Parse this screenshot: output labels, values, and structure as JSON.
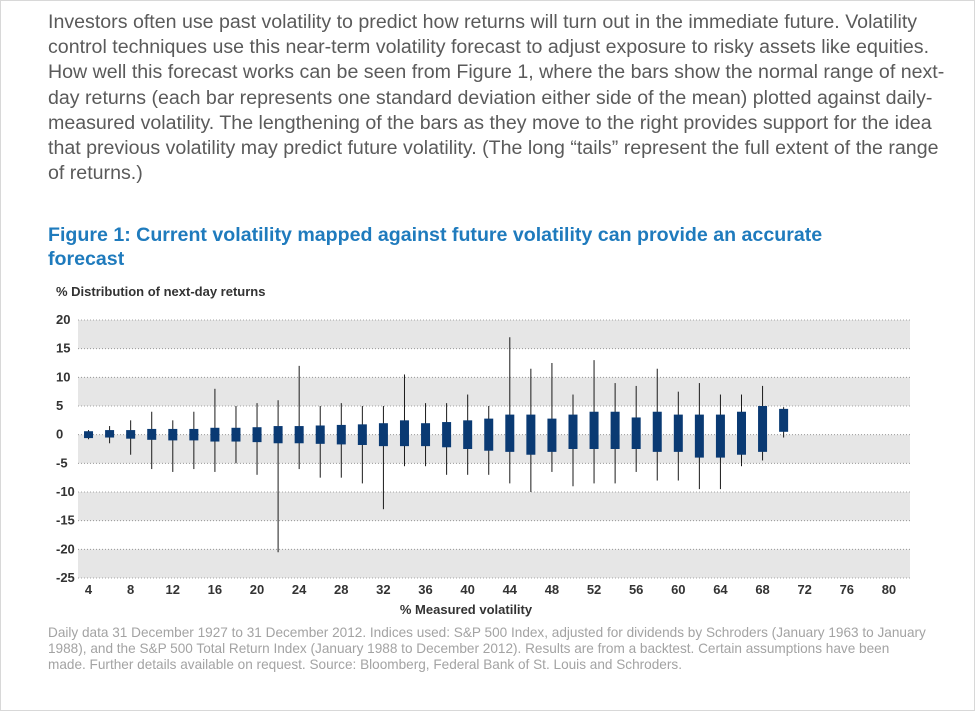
{
  "intro_text": "Investors often use past volatility to predict how returns will turn out in the immediate future. Volatility control techniques use this near-term volatility forecast to adjust exposure to risky assets like equities. How well this forecast works can be seen from Figure 1, where the bars show the normal range of next-day returns (each bar represents one standard deviation either side of the mean) plotted against daily-measured volatility. The lengthening of the bars as they move to the right provides support for the idea that previous volatility may predict future volatility. (The long “tails” represent the full extent of the range of returns.)",
  "footnote": "Daily data 31 December 1927 to 31 December 2012. Indices used: S&P 500 Index, adjusted for dividends by Schroders (January 1963 to January 1988), and the S&P 500 Total Return Index (January 1988 to December 2012). Results are from a backtest. Certain assumptions have been made. Further details available on request. Source: Bloomberg, Federal Bank of St. Louis and Schroders.",
  "colors": {
    "title": "#1f7bbd",
    "box": "#0a3a73",
    "band": "#e6e6e6",
    "text": "#5a5a5a"
  },
  "chart_data": {
    "type": "box",
    "title": "Figure 1: Current volatility mapped against future volatility can provide an accurate forecast",
    "ylabel": "% Distribution of next-day returns",
    "xlabel": "% Measured volatility",
    "ylim": [
      -25,
      20
    ],
    "xlim": [
      3,
      82
    ],
    "x_ticks": [
      4,
      8,
      12,
      16,
      20,
      24,
      28,
      32,
      36,
      40,
      44,
      48,
      52,
      56,
      60,
      64,
      68,
      72,
      76,
      80
    ],
    "y_ticks": [
      20,
      15,
      10,
      5,
      0,
      -5,
      -10,
      -15,
      -20,
      -25
    ],
    "grid": "alternating horizontal bands",
    "series": [
      {
        "x": 4,
        "min": -0.8,
        "q1": -0.6,
        "q3": 0.6,
        "max": 0.8
      },
      {
        "x": 6,
        "min": -1.5,
        "q1": -0.5,
        "q3": 0.8,
        "max": 1.5
      },
      {
        "x": 8,
        "min": -3.5,
        "q1": -0.7,
        "q3": 0.8,
        "max": 2.5
      },
      {
        "x": 10,
        "min": -6.0,
        "q1": -0.9,
        "q3": 1.0,
        "max": 4.0
      },
      {
        "x": 12,
        "min": -6.5,
        "q1": -1.0,
        "q3": 1.0,
        "max": 2.5
      },
      {
        "x": 14,
        "min": -6.0,
        "q1": -1.0,
        "q3": 1.0,
        "max": 4.0
      },
      {
        "x": 16,
        "min": -6.5,
        "q1": -1.2,
        "q3": 1.2,
        "max": 8.0
      },
      {
        "x": 18,
        "min": -5.0,
        "q1": -1.2,
        "q3": 1.2,
        "max": 5.0
      },
      {
        "x": 20,
        "min": -7.0,
        "q1": -1.3,
        "q3": 1.3,
        "max": 5.5
      },
      {
        "x": 22,
        "min": -20.5,
        "q1": -1.5,
        "q3": 1.5,
        "max": 6.0
      },
      {
        "x": 24,
        "min": -6.0,
        "q1": -1.5,
        "q3": 1.5,
        "max": 12.0
      },
      {
        "x": 26,
        "min": -7.5,
        "q1": -1.6,
        "q3": 1.6,
        "max": 5.0
      },
      {
        "x": 28,
        "min": -7.5,
        "q1": -1.7,
        "q3": 1.7,
        "max": 5.5
      },
      {
        "x": 30,
        "min": -8.5,
        "q1": -1.8,
        "q3": 1.8,
        "max": 5.0
      },
      {
        "x": 32,
        "min": -13.0,
        "q1": -2.0,
        "q3": 2.0,
        "max": 5.0
      },
      {
        "x": 34,
        "min": -5.5,
        "q1": -2.0,
        "q3": 2.5,
        "max": 10.5
      },
      {
        "x": 36,
        "min": -5.5,
        "q1": -2.0,
        "q3": 2.0,
        "max": 5.5
      },
      {
        "x": 38,
        "min": -7.0,
        "q1": -2.2,
        "q3": 2.2,
        "max": 5.5
      },
      {
        "x": 40,
        "min": -7.0,
        "q1": -2.5,
        "q3": 2.5,
        "max": 7.0
      },
      {
        "x": 42,
        "min": -7.0,
        "q1": -2.8,
        "q3": 2.8,
        "max": 5.0
      },
      {
        "x": 44,
        "min": -8.5,
        "q1": -3.0,
        "q3": 3.5,
        "max": 17.0
      },
      {
        "x": 46,
        "min": -10.0,
        "q1": -3.5,
        "q3": 3.5,
        "max": 11.5
      },
      {
        "x": 48,
        "min": -6.5,
        "q1": -3.0,
        "q3": 2.8,
        "max": 12.5
      },
      {
        "x": 50,
        "min": -9.0,
        "q1": -2.5,
        "q3": 3.5,
        "max": 7.0
      },
      {
        "x": 52,
        "min": -8.5,
        "q1": -2.5,
        "q3": 4.0,
        "max": 13.0
      },
      {
        "x": 54,
        "min": -8.5,
        "q1": -2.5,
        "q3": 4.0,
        "max": 9.0
      },
      {
        "x": 56,
        "min": -6.5,
        "q1": -2.5,
        "q3": 3.0,
        "max": 8.5
      },
      {
        "x": 58,
        "min": -8.0,
        "q1": -3.0,
        "q3": 4.0,
        "max": 11.5
      },
      {
        "x": 60,
        "min": -8.0,
        "q1": -3.0,
        "q3": 3.5,
        "max": 7.5
      },
      {
        "x": 62,
        "min": -9.5,
        "q1": -4.0,
        "q3": 3.5,
        "max": 9.0
      },
      {
        "x": 64,
        "min": -9.5,
        "q1": -4.0,
        "q3": 3.5,
        "max": 7.0
      },
      {
        "x": 66,
        "min": -5.5,
        "q1": -3.5,
        "q3": 4.0,
        "max": 7.0
      },
      {
        "x": 68,
        "min": -4.5,
        "q1": -3.0,
        "q3": 5.0,
        "max": 8.5
      },
      {
        "x": 70,
        "min": -0.5,
        "q1": 0.5,
        "q3": 4.5,
        "max": 4.8
      }
    ]
  }
}
